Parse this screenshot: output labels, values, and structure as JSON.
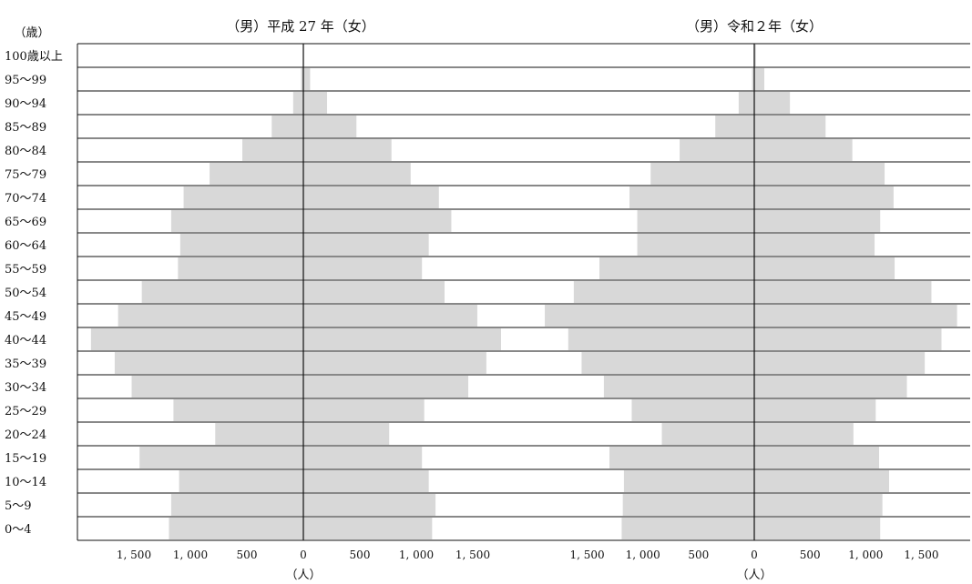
{
  "chart_data": [
    {
      "type": "bar",
      "orientation": "horizontal-population-pyramid",
      "title": "（男）平成 27 年（女）",
      "xlabel": "（人）",
      "ylabel": "（歳）",
      "xlim": [
        -1900,
        1900
      ],
      "xticks": [
        1500,
        1000,
        500,
        0,
        500,
        1000,
        1500
      ],
      "xtick_labels": [
        "1, 500",
        "1, 000",
        "500",
        "0",
        "500",
        "1, 000",
        "1, 500"
      ],
      "categories": [
        "100歳以上",
        "95～99",
        "90～94",
        "85～89",
        "80～84",
        "75～79",
        "70～74",
        "65～69",
        "60～64",
        "55～59",
        "50～54",
        "45～49",
        "40～44",
        "35～39",
        "30～34",
        "25～29",
        "20～24",
        "15～19",
        "10～14",
        "5～9",
        "0～4"
      ],
      "series": [
        {
          "values": [
            3,
            20,
            90,
            280,
            540,
            830,
            1060,
            1170,
            1090,
            1110,
            1430,
            1640,
            1880,
            1670,
            1520,
            1150,
            780,
            1450,
            1100,
            1170,
            1190
          ]
        },
        {
          "values": [
            5,
            60,
            210,
            470,
            780,
            950,
            1200,
            1310,
            1110,
            1050,
            1250,
            1540,
            1750,
            1620,
            1460,
            1070,
            760,
            1050,
            1110,
            1170,
            1140
          ]
        }
      ],
      "grid": true,
      "bar_color": "#d8d8d8"
    },
    {
      "type": "bar",
      "orientation": "horizontal-population-pyramid",
      "title": "（男）令和２年（女）",
      "xlabel": "（人）",
      "xlim": [
        -1900,
        1900
      ],
      "xticks": [
        1500,
        1000,
        500,
        0,
        500,
        1000,
        1500
      ],
      "xtick_labels": [
        "1, 500",
        "1, 000",
        "500",
        "0",
        "500",
        "1, 000",
        "1, 500"
      ],
      "categories": [
        "100歳以上",
        "95～99",
        "90～94",
        "85～89",
        "80～84",
        "75～79",
        "70～74",
        "65～69",
        "60～64",
        "55～59",
        "50～54",
        "45～49",
        "40～44",
        "35～39",
        "30～34",
        "25～29",
        "20～24",
        "15～19",
        "10～14",
        "5～9",
        "0～4"
      ],
      "series": [
        {
          "values": [
            5,
            20,
            140,
            350,
            670,
            930,
            1120,
            1050,
            1050,
            1390,
            1620,
            1880,
            1670,
            1550,
            1350,
            1100,
            830,
            1300,
            1170,
            1180,
            1190
          ]
        },
        {
          "values": [
            15,
            90,
            320,
            640,
            880,
            1170,
            1250,
            1130,
            1080,
            1260,
            1590,
            1820,
            1680,
            1530,
            1370,
            1090,
            890,
            1120,
            1210,
            1150,
            1130
          ]
        }
      ],
      "grid": true,
      "bar_color": "#d8d8d8"
    }
  ]
}
